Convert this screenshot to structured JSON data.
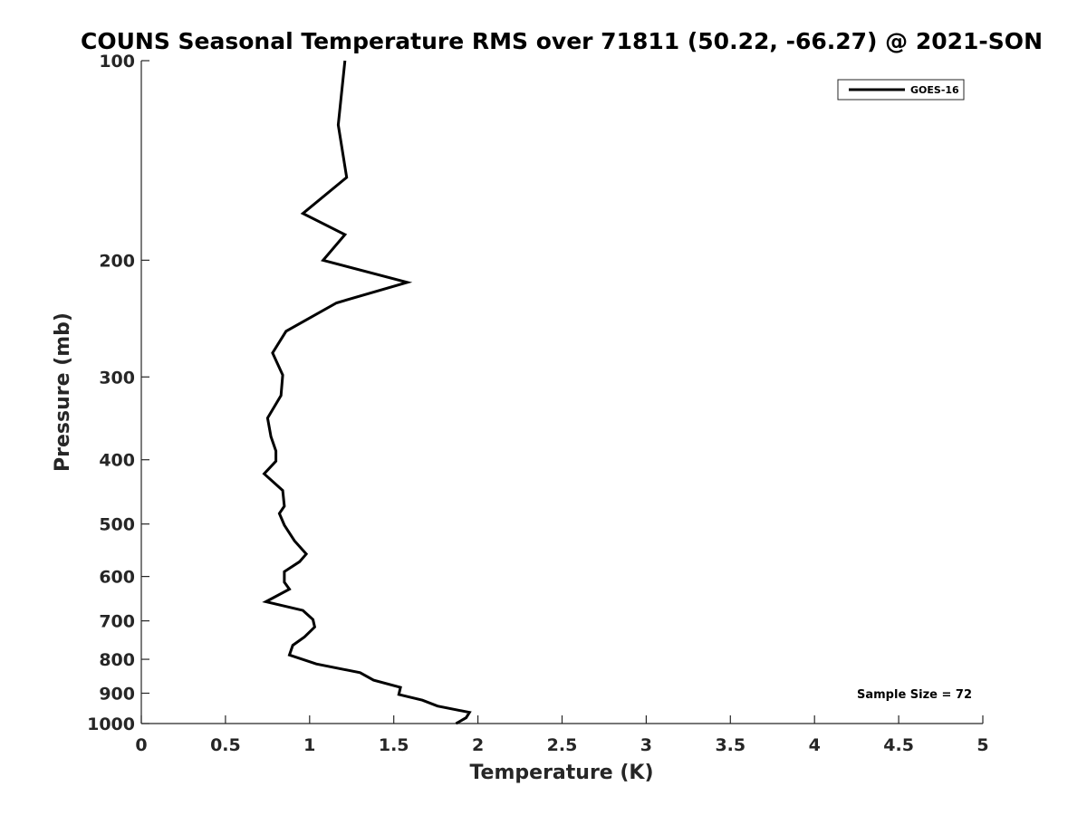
{
  "chart_data": {
    "type": "line",
    "title": "COUNS Seasonal Temperature RMS over 71811 (50.22, -66.27) @ 2021-SON",
    "xlabel": "Temperature (K)",
    "ylabel": "Pressure (mb)",
    "xlim": [
      0,
      5
    ],
    "ylim": [
      100,
      1000
    ],
    "y_scale": "log",
    "y_reversed": true,
    "grid": false,
    "legend_position": "top-right",
    "x_ticks": [
      0,
      0.5,
      1,
      1.5,
      2,
      2.5,
      3,
      3.5,
      4,
      4.5,
      5
    ],
    "x_tick_labels": [
      "0",
      "0.5",
      "1",
      "1.5",
      "2",
      "2.5",
      "3",
      "3.5",
      "4",
      "4.5",
      "5"
    ],
    "y_ticks": [
      100,
      200,
      300,
      400,
      500,
      600,
      700,
      800,
      900,
      1000
    ],
    "y_tick_labels": [
      "100",
      "200",
      "300",
      "400",
      "500",
      "600",
      "700",
      "800",
      "900",
      "1000"
    ],
    "annotation": "Sample Size = 72",
    "series": [
      {
        "name": "GOES-16",
        "color": "#000000",
        "points": [
          [
            1.21,
            100
          ],
          [
            1.17,
            125
          ],
          [
            1.22,
            150
          ],
          [
            0.96,
            170
          ],
          [
            1.21,
            183
          ],
          [
            1.08,
            200
          ],
          [
            1.58,
            216
          ],
          [
            1.16,
            232
          ],
          [
            0.86,
            256
          ],
          [
            0.78,
            276
          ],
          [
            0.84,
            298
          ],
          [
            0.83,
            320
          ],
          [
            0.75,
            346
          ],
          [
            0.77,
            369
          ],
          [
            0.8,
            388
          ],
          [
            0.8,
            402
          ],
          [
            0.73,
            420
          ],
          [
            0.84,
            445
          ],
          [
            0.85,
            470
          ],
          [
            0.82,
            482
          ],
          [
            0.85,
            502
          ],
          [
            0.91,
            530
          ],
          [
            0.98,
            555
          ],
          [
            0.94,
            570
          ],
          [
            0.85,
            590
          ],
          [
            0.85,
            612
          ],
          [
            0.88,
            627
          ],
          [
            0.74,
            655
          ],
          [
            0.96,
            675
          ],
          [
            1.02,
            697
          ],
          [
            1.03,
            715
          ],
          [
            0.97,
            740
          ],
          [
            0.9,
            762
          ],
          [
            0.88,
            788
          ],
          [
            1.04,
            813
          ],
          [
            1.3,
            838
          ],
          [
            1.38,
            860
          ],
          [
            1.54,
            882
          ],
          [
            1.53,
            904
          ],
          [
            1.67,
            922
          ],
          [
            1.76,
            941
          ],
          [
            1.95,
            962
          ],
          [
            1.93,
            980
          ],
          [
            1.87,
            1000
          ]
        ]
      }
    ]
  }
}
